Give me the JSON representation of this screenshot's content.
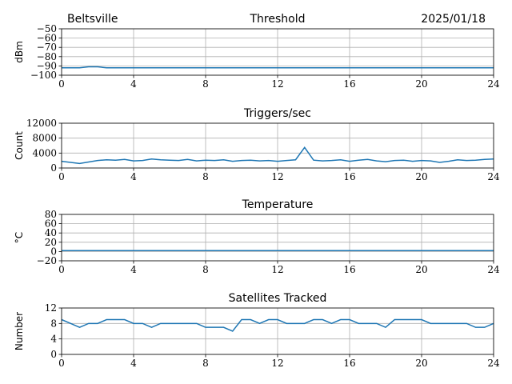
{
  "chart_data": [
    {
      "type": "line",
      "location": "Beltsville",
      "title": "Threshold",
      "date": "2025/01/18",
      "ylabel": "dBm",
      "x": [
        0,
        0.5,
        1,
        1.5,
        2,
        2.5,
        3,
        3.5,
        4,
        4.5,
        5,
        5.5,
        6,
        6.5,
        7,
        7.5,
        8,
        8.5,
        9,
        9.5,
        10,
        10.5,
        11,
        11.5,
        12,
        12.5,
        13,
        13.5,
        14,
        14.5,
        15,
        15.5,
        16,
        16.5,
        17,
        17.5,
        18,
        18.5,
        19,
        19.5,
        20,
        20.5,
        21,
        21.5,
        22,
        22.5,
        23,
        23.5,
        24
      ],
      "values": [
        -92,
        -92,
        -92,
        -91,
        -91,
        -92,
        -92,
        -92,
        -92,
        -92,
        -92,
        -92,
        -92,
        -92,
        -92,
        -92,
        -92,
        -92,
        -92,
        -92,
        -92,
        -92,
        -92,
        -92,
        -92,
        -92,
        -92,
        -92,
        -92,
        -92,
        -92,
        -92,
        -92,
        -92,
        -92,
        -92,
        -92,
        -92,
        -92,
        -92,
        -92,
        -92,
        -92,
        -92,
        -92,
        -92,
        -92,
        -92,
        -92
      ],
      "color": "#1f77b4",
      "xlim": [
        0,
        24
      ],
      "xticks": [
        0,
        4,
        8,
        12,
        16,
        20,
        24
      ],
      "ylim": [
        -100,
        -50
      ],
      "yticks": [
        {
          "value": -100,
          "label": "−100"
        },
        {
          "value": -90,
          "label": "−90"
        },
        {
          "value": -80,
          "label": "−80"
        },
        {
          "value": -70,
          "label": "−70"
        },
        {
          "value": -60,
          "label": "−60"
        },
        {
          "value": -50,
          "label": "−50"
        }
      ],
      "grid": true
    },
    {
      "type": "line",
      "title": "Triggers/sec",
      "ylabel": "Count",
      "x": [
        0,
        0.5,
        1,
        1.5,
        2,
        2.5,
        3,
        3.5,
        4,
        4.5,
        5,
        5.5,
        6,
        6.5,
        7,
        7.5,
        8,
        8.5,
        9,
        9.5,
        10,
        10.5,
        11,
        11.5,
        12,
        12.5,
        13,
        13.5,
        14,
        14.5,
        15,
        15.5,
        16,
        16.5,
        17,
        17.5,
        18,
        18.5,
        19,
        19.5,
        20,
        20.5,
        21,
        21.5,
        22,
        22.5,
        23,
        23.5,
        24
      ],
      "values": [
        1800,
        1500,
        1200,
        1600,
        2000,
        2200,
        2100,
        2300,
        1900,
        2000,
        2400,
        2200,
        2100,
        2000,
        2300,
        1900,
        2100,
        2000,
        2200,
        1800,
        2000,
        2100,
        1900,
        2000,
        1800,
        2000,
        2200,
        5500,
        2100,
        1900,
        2000,
        2200,
        1800,
        2100,
        2300,
        1900,
        1700,
        2000,
        2100,
        1800,
        2000,
        1900,
        1500,
        1800,
        2200,
        2000,
        2100,
        2300,
        2400
      ],
      "color": "#1f77b4",
      "xlim": [
        0,
        24
      ],
      "xticks": [
        0,
        4,
        8,
        12,
        16,
        20,
        24
      ],
      "ylim": [
        0,
        12000
      ],
      "yticks": [
        0,
        4000,
        8000,
        12000
      ],
      "grid": true
    },
    {
      "type": "line",
      "title": "Temperature",
      "ylabel": "°C",
      "x": [
        0,
        0.5,
        1,
        1.5,
        2,
        2.5,
        3,
        3.5,
        4,
        4.5,
        5,
        5.5,
        6,
        6.5,
        7,
        7.5,
        8,
        8.5,
        9,
        9.5,
        10,
        10.5,
        11,
        11.5,
        12,
        12.5,
        13,
        13.5,
        14,
        14.5,
        15,
        15.5,
        16,
        16.5,
        17,
        17.5,
        18,
        18.5,
        19,
        19.5,
        20,
        20.5,
        21,
        21.5,
        22,
        22.5,
        23,
        23.5,
        24
      ],
      "values": [
        2,
        2,
        2,
        2,
        2,
        2,
        2,
        2,
        2,
        2,
        2,
        2,
        2,
        2,
        2,
        2,
        2,
        2,
        2,
        2,
        2,
        2,
        2,
        2,
        2,
        2,
        2,
        2,
        2,
        2,
        2,
        2,
        2,
        2,
        2,
        2,
        2,
        2,
        2,
        2,
        2,
        2,
        2,
        2,
        2,
        2,
        2,
        2,
        2
      ],
      "color": "#1f77b4",
      "xlim": [
        0,
        24
      ],
      "xticks": [
        0,
        4,
        8,
        12,
        16,
        20,
        24
      ],
      "ylim": [
        -20,
        80
      ],
      "yticks": [
        {
          "value": -20,
          "label": "−20"
        },
        0,
        20,
        40,
        60,
        80
      ],
      "grid": true
    },
    {
      "type": "line",
      "title": "Satellites Tracked",
      "ylabel": "Number",
      "x": [
        0,
        0.5,
        1,
        1.5,
        2,
        2.5,
        3,
        3.5,
        4,
        4.5,
        5,
        5.5,
        6,
        6.5,
        7,
        7.5,
        8,
        8.5,
        9,
        9.5,
        10,
        10.5,
        11,
        11.5,
        12,
        12.5,
        13,
        13.5,
        14,
        14.5,
        15,
        15.5,
        16,
        16.5,
        17,
        17.5,
        18,
        18.5,
        19,
        19.5,
        20,
        20.5,
        21,
        21.5,
        22,
        22.5,
        23,
        23.5,
        24
      ],
      "values": [
        9,
        8,
        7,
        8,
        8,
        9,
        9,
        9,
        8,
        8,
        7,
        8,
        8,
        8,
        8,
        8,
        7,
        7,
        7,
        6,
        9,
        9,
        8,
        9,
        9,
        8,
        8,
        8,
        9,
        9,
        8,
        9,
        9,
        8,
        8,
        8,
        7,
        9,
        9,
        9,
        9,
        8,
        8,
        8,
        8,
        8,
        7,
        7,
        8
      ],
      "color": "#1f77b4",
      "xlim": [
        0,
        24
      ],
      "xticks": [
        0,
        4,
        8,
        12,
        16,
        20,
        24
      ],
      "ylim": [
        0,
        12
      ],
      "yticks": [
        0,
        4,
        8,
        12
      ],
      "grid": true
    }
  ]
}
